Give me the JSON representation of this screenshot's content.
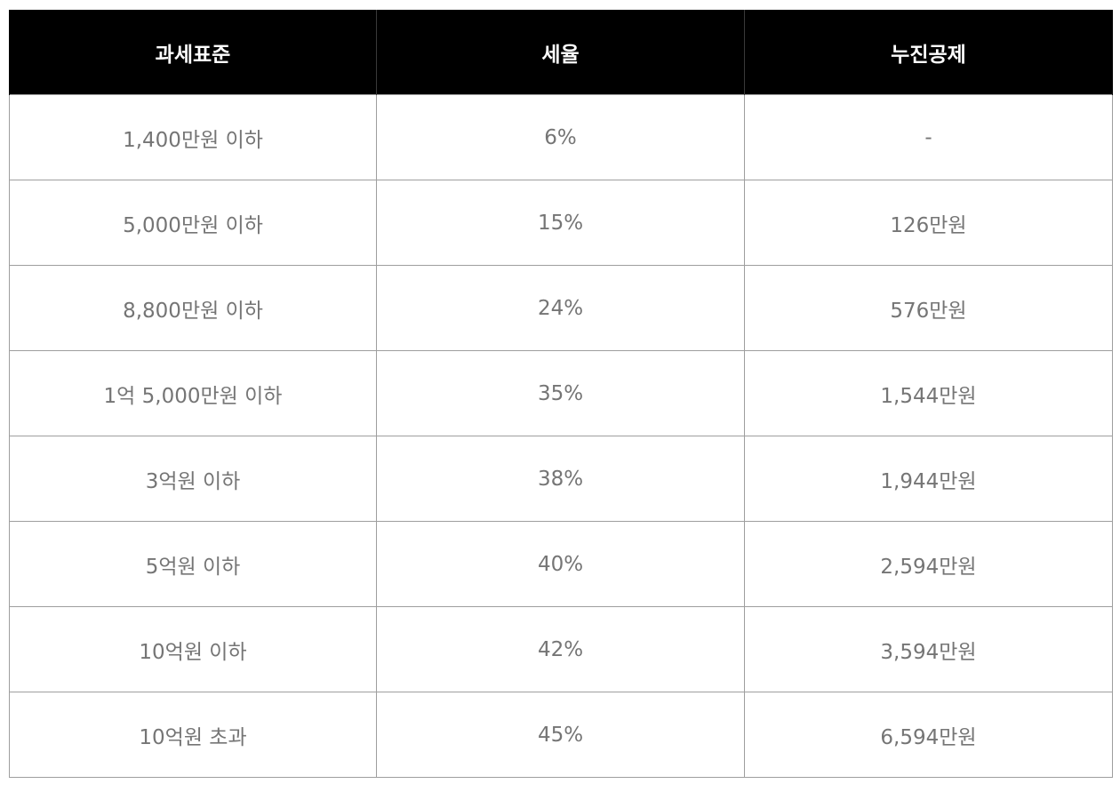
{
  "table": {
    "headers": [
      "과세표준",
      "세율",
      "누진공제"
    ],
    "rows": [
      [
        "1,400만원 이하",
        "6%",
        "-"
      ],
      [
        "5,000만원 이하",
        "15%",
        "126만원"
      ],
      [
        "8,800만원 이하",
        "24%",
        "576만원"
      ],
      [
        "1억 5,000만원 이하",
        "35%",
        "1,544만원"
      ],
      [
        "3억원 이하",
        "38%",
        "1,944만원"
      ],
      [
        "5억원 이하",
        "40%",
        "2,594만원"
      ],
      [
        "10억원 이하",
        "42%",
        "3,594만원"
      ],
      [
        "10억원 초과",
        "45%",
        "6,594만원"
      ]
    ]
  },
  "colors": {
    "header_bg": "#000000",
    "header_text": "#ffffff",
    "cell_text": "#757575",
    "border": "#9e9e9e"
  }
}
